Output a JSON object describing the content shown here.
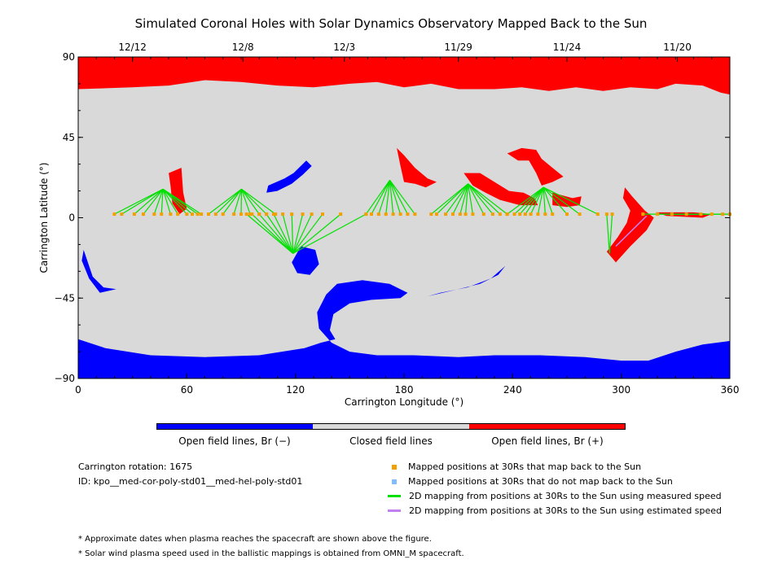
{
  "chart_data": {
    "type": "map",
    "title": "Simulated Coronal Holes with Solar Dynamics Observatory Mapped Back to the Sun",
    "xlabel": "Carrington Longitude (°)",
    "ylabel": "Carrington Latitude (°)",
    "xlim": [
      0,
      360
    ],
    "ylim": [
      -90,
      90
    ],
    "x_ticks": [
      0,
      60,
      120,
      180,
      240,
      300,
      360
    ],
    "y_ticks": [
      90,
      45,
      0,
      -45,
      -90
    ],
    "y_tick_labels": [
      "90",
      "45",
      "0",
      "−45",
      "−90"
    ],
    "date_ticks": [
      {
        "label": "12/12",
        "lon": 30
      },
      {
        "label": "12/8",
        "lon": 91
      },
      {
        "label": "12/3",
        "lon": 147
      },
      {
        "label": "11/29",
        "lon": 210
      },
      {
        "label": "11/24",
        "lon": 270
      },
      {
        "label": "11/20",
        "lon": 331
      }
    ],
    "colors": {
      "closed": "#d9d9d9",
      "open_neg": "#0000ff",
      "open_pos": "#ff0000",
      "mapped": "#f2a000",
      "unmapped": "#7fbfff",
      "measured": "#00e000",
      "estimated": "#c080f0"
    },
    "regions": {
      "north_polar_pos": [
        [
          0,
          90
        ],
        [
          360,
          90
        ],
        [
          360,
          69
        ],
        [
          355,
          70
        ],
        [
          345,
          74
        ],
        [
          330,
          75
        ],
        [
          320,
          72
        ],
        [
          305,
          73
        ],
        [
          290,
          71
        ],
        [
          275,
          73
        ],
        [
          260,
          71
        ],
        [
          245,
          73
        ],
        [
          230,
          72
        ],
        [
          210,
          72
        ],
        [
          195,
          75
        ],
        [
          180,
          73
        ],
        [
          165,
          76
        ],
        [
          150,
          75
        ],
        [
          130,
          73
        ],
        [
          110,
          74
        ],
        [
          90,
          76
        ],
        [
          70,
          77
        ],
        [
          50,
          74
        ],
        [
          30,
          73
        ],
        [
          0,
          72
        ]
      ],
      "south_polar_neg": [
        [
          0,
          -90
        ],
        [
          360,
          -90
        ],
        [
          360,
          -69
        ],
        [
          345,
          -71
        ],
        [
          330,
          -75
        ],
        [
          315,
          -80
        ],
        [
          300,
          -80
        ],
        [
          280,
          -78
        ],
        [
          255,
          -77
        ],
        [
          230,
          -77
        ],
        [
          210,
          -78
        ],
        [
          185,
          -77
        ],
        [
          165,
          -77
        ],
        [
          150,
          -75
        ],
        [
          140,
          -70
        ],
        [
          133,
          -62
        ],
        [
          132,
          -53
        ],
        [
          137,
          -43
        ],
        [
          143,
          -37
        ],
        [
          157,
          -35
        ],
        [
          172,
          -37
        ],
        [
          182,
          -42
        ],
        [
          178,
          -45
        ],
        [
          162,
          -46
        ],
        [
          150,
          -48
        ],
        [
          141,
          -54
        ],
        [
          139,
          -63
        ],
        [
          142,
          -68
        ],
        [
          134,
          -70
        ],
        [
          125,
          -73
        ],
        [
          100,
          -77
        ],
        [
          70,
          -78
        ],
        [
          40,
          -77
        ],
        [
          15,
          -73
        ],
        [
          0,
          -68
        ]
      ],
      "pos_holes": [
        [
          [
            50,
            25
          ],
          [
            57,
            28
          ],
          [
            58,
            14
          ],
          [
            60,
            5
          ],
          [
            56,
            2
          ],
          [
            52,
            8
          ],
          [
            51,
            18
          ]
        ],
        [
          [
            176,
            39
          ],
          [
            180,
            35
          ],
          [
            186,
            28
          ],
          [
            193,
            22
          ],
          [
            198,
            20
          ],
          [
            192,
            17
          ],
          [
            186,
            19
          ],
          [
            180,
            20
          ],
          [
            178,
            29
          ]
        ],
        [
          [
            213,
            25
          ],
          [
            222,
            25
          ],
          [
            230,
            20
          ],
          [
            238,
            15
          ],
          [
            246,
            14
          ],
          [
            252,
            11
          ],
          [
            254,
            7
          ],
          [
            244,
            7
          ],
          [
            233,
            10
          ],
          [
            225,
            14
          ],
          [
            218,
            18
          ]
        ],
        [
          [
            237,
            36
          ],
          [
            245,
            39
          ],
          [
            253,
            38
          ],
          [
            256,
            33
          ],
          [
            262,
            28
          ],
          [
            268,
            23
          ],
          [
            262,
            20
          ],
          [
            256,
            18
          ],
          [
            253,
            25
          ],
          [
            249,
            32
          ],
          [
            243,
            32
          ]
        ],
        [
          [
            262,
            14
          ],
          [
            273,
            11
          ],
          [
            278,
            12
          ],
          [
            277,
            7
          ],
          [
            270,
            6
          ],
          [
            262,
            7
          ]
        ],
        [
          [
            302,
            17
          ],
          [
            306,
            12
          ],
          [
            313,
            4
          ],
          [
            318,
            0
          ],
          [
            314,
            -7
          ],
          [
            305,
            -16
          ],
          [
            297,
            -25
          ],
          [
            292,
            -19
          ],
          [
            298,
            -11
          ],
          [
            303,
            -3
          ],
          [
            305,
            4
          ],
          [
            301,
            11
          ]
        ],
        [
          [
            319,
            3
          ],
          [
            340,
            3
          ],
          [
            350,
            2
          ],
          [
            345,
            0
          ],
          [
            325,
            1
          ]
        ]
      ],
      "neg_holes": [
        [
          [
            105,
            18
          ],
          [
            114,
            22
          ],
          [
            119,
            25
          ],
          [
            126,
            32
          ],
          [
            129,
            29
          ],
          [
            124,
            24
          ],
          [
            118,
            19
          ],
          [
            110,
            15
          ],
          [
            104,
            14
          ]
        ],
        [
          [
            123,
            -16
          ],
          [
            131,
            -18
          ],
          [
            133,
            -26
          ],
          [
            128,
            -32
          ],
          [
            121,
            -31
          ],
          [
            118,
            -25
          ]
        ],
        [
          [
            3,
            -18
          ],
          [
            8,
            -33
          ],
          [
            14,
            -39
          ],
          [
            21,
            -40
          ],
          [
            12,
            -42
          ],
          [
            6,
            -34
          ],
          [
            2,
            -24
          ]
        ],
        [
          [
            193,
            -44
          ],
          [
            210,
            -40
          ],
          [
            222,
            -37
          ],
          [
            232,
            -32
          ],
          [
            236,
            -27
          ],
          [
            228,
            -34
          ],
          [
            215,
            -39
          ],
          [
            200,
            -42
          ]
        ]
      ]
    },
    "footpoints": [
      {
        "lat": 16,
        "lons": [
          20,
          24,
          31,
          36,
          42,
          46,
          51,
          55,
          60,
          63,
          66,
          68
        ]
      },
      {
        "lat": 16,
        "lons": [
          72,
          76,
          80,
          86,
          90,
          95,
          100,
          104,
          109
        ]
      },
      {
        "lat": -20,
        "lons": [
          93,
          96,
          100,
          104,
          108,
          113,
          118,
          124,
          129,
          135,
          145,
          159
        ]
      },
      {
        "lat": 21,
        "lons": [
          159,
          162,
          166,
          170,
          174,
          178,
          182,
          186
        ]
      },
      {
        "lat": 19,
        "lons": [
          195,
          198,
          203,
          207,
          211,
          214,
          218,
          224,
          229,
          233,
          237
        ]
      },
      {
        "lat": 17,
        "lons": [
          237,
          241,
          244,
          247,
          250,
          254,
          258,
          262,
          270,
          277,
          287
        ]
      },
      {
        "lat": -20,
        "lons": [
          292,
          295
        ]
      },
      {
        "lat": 2,
        "lons": [
          312,
          320,
          328,
          336,
          344,
          350,
          356,
          360
        ]
      }
    ],
    "estimated_line": [
      [
        314,
        1
      ],
      [
        297,
        -16
      ]
    ],
    "mapped_lat": 2,
    "legend": [
      {
        "type": "square",
        "color": "mapped",
        "label": "Mapped positions at 30Rs that map back to the Sun"
      },
      {
        "type": "square",
        "color": "unmapped",
        "label": "Mapped positions at 30Rs that do not map back to the Sun"
      },
      {
        "type": "line",
        "color": "measured",
        "label": "2D mapping from positions at 30Rs to the Sun using measured speed"
      },
      {
        "type": "line",
        "color": "estimated",
        "label": "2D mapping from positions at 30Rs to the Sun using estimated speed"
      }
    ],
    "colorbar": [
      {
        "color": "open_neg",
        "label": "Open field lines, Br (−)"
      },
      {
        "color": "closed",
        "label": "Closed field lines"
      },
      {
        "color": "open_pos",
        "label": "Open field lines, Br (+)"
      }
    ]
  },
  "info": {
    "rotation": "Carrington rotation: 1675",
    "id": "ID: kpo__med-cor-poly-std01__med-hel-poly-std01"
  },
  "notes": [
    "* Approximate dates when plasma reaches the spacecraft are shown above the figure.",
    "* Solar wind plasma speed used in the ballistic mappings is obtained from OMNI_M spacecraft."
  ]
}
